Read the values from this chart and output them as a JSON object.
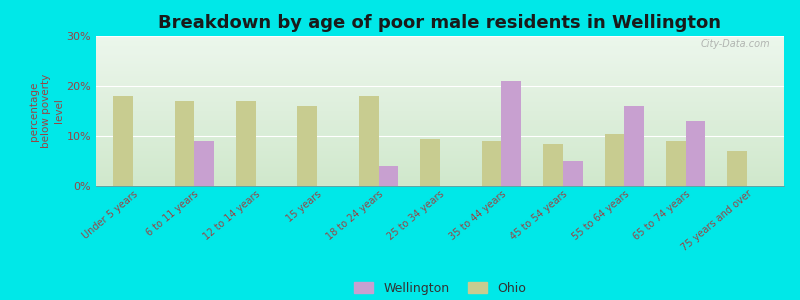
{
  "title": "Breakdown by age of poor male residents in Wellington",
  "ylabel": "percentage\nbelow poverty\nlevel",
  "categories": [
    "Under 5 years",
    "6 to 11 years",
    "12 to 14 years",
    "15 years",
    "18 to 24 years",
    "25 to 34 years",
    "35 to 44 years",
    "45 to 54 years",
    "55 to 64 years",
    "65 to 74 years",
    "75 years and over"
  ],
  "wellington": [
    0,
    9,
    0,
    0,
    4,
    0,
    21,
    5,
    16,
    13,
    0
  ],
  "ohio": [
    18,
    17,
    17,
    16,
    18,
    9.5,
    9,
    8.5,
    10.5,
    9,
    7
  ],
  "wellington_color": "#c8a0d0",
  "ohio_color": "#c8cc90",
  "background_top": "#f0f8ee",
  "background_bottom": "#d8edd8",
  "background_fig": "#00e8e8",
  "title_color": "#1a1a1a",
  "tick_color": "#994444",
  "ylim": [
    0,
    30
  ],
  "yticks": [
    0,
    10,
    20,
    30
  ],
  "ytick_labels": [
    "0%",
    "10%",
    "20%",
    "30%"
  ],
  "bar_width": 0.32,
  "legend_wellington": "Wellington",
  "legend_ohio": "Ohio",
  "watermark": "City-Data.com"
}
